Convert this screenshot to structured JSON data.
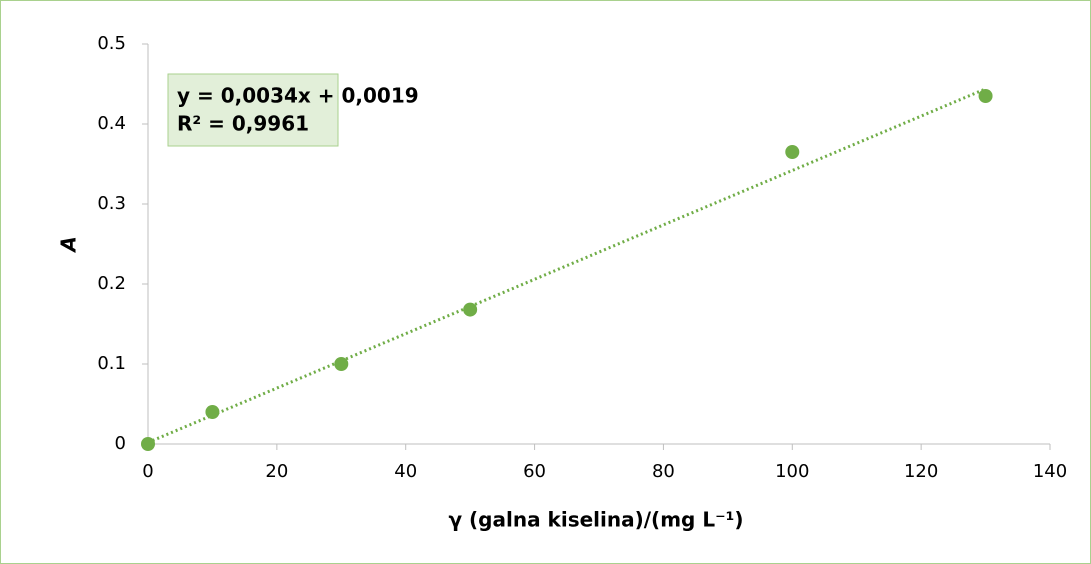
{
  "chart_data": {
    "type": "scatter",
    "x_label": "γ (galna kiselina)/(mg L⁻¹)",
    "y_label": "A",
    "x": [
      0,
      10,
      30,
      50,
      100,
      130
    ],
    "values": [
      0,
      0.04,
      0.1,
      0.168,
      0.365,
      0.435
    ],
    "color": "#70ad47",
    "xlim": [
      0,
      140
    ],
    "xticks": [
      0,
      20,
      40,
      60,
      80,
      100,
      120,
      140
    ],
    "ylim": [
      0,
      0.5
    ],
    "yticks": [
      0,
      0.1,
      0.2,
      0.3,
      0.4,
      0.5
    ],
    "grid": false,
    "trendline": {
      "slope": 0.0034,
      "intercept": 0.0019,
      "equation": "y = 0,0034x + 0,0019",
      "r_squared": "R² = 0,9961"
    }
  }
}
